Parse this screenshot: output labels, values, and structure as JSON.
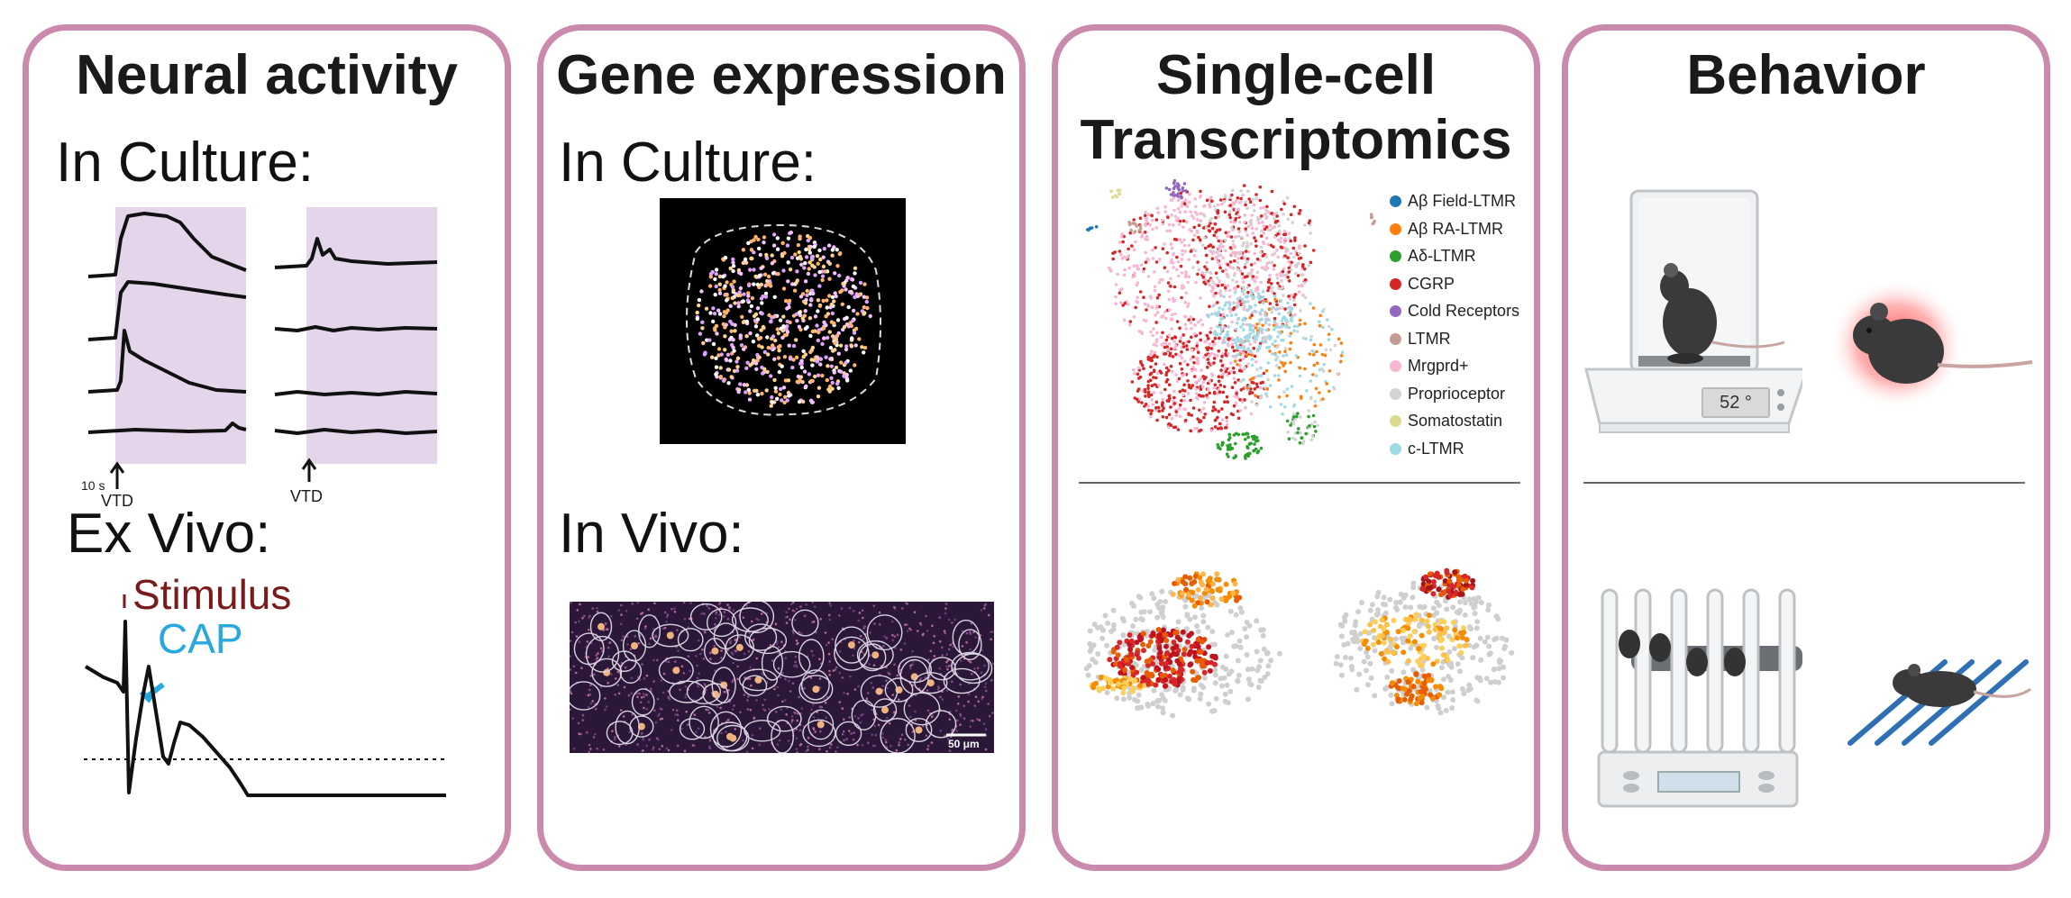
{
  "panels": [
    {
      "title_lines": [
        "Neural activity"
      ],
      "subtitles": [
        "In Culture:",
        "Ex Vivo:"
      ],
      "annotations": {
        "scale": "10 s",
        "vtd_1": "VTD",
        "vtd_2": "VTD",
        "stimulus": "Stimulus",
        "cap": "CAP"
      }
    },
    {
      "title_lines": [
        "Gene expression"
      ],
      "subtitles": [
        "In Culture:",
        "In Vivo:"
      ],
      "annotations": {
        "scale_bar": "50 μm"
      }
    },
    {
      "title_lines": [
        "Single-cell",
        "Transcriptomics"
      ],
      "legend": [
        {
          "label": "Aβ Field-LTMR",
          "color": "#1f77b4"
        },
        {
          "label": "Aβ RA-LTMR",
          "color": "#ff7f0e"
        },
        {
          "label": "Aδ-LTMR",
          "color": "#2ca02c"
        },
        {
          "label": "CGRP",
          "color": "#d62728"
        },
        {
          "label": "Cold Receptors",
          "color": "#9467bd"
        },
        {
          "label": "LTMR",
          "color": "#c49c94"
        },
        {
          "label": "Mrgprd+",
          "color": "#f7b6d2"
        },
        {
          "label": "Proprioceptor",
          "color": "#d3d3d3"
        },
        {
          "label": "Somatostatin",
          "color": "#dbdb8d"
        },
        {
          "label": "c-LTMR",
          "color": "#9edae5"
        }
      ]
    },
    {
      "title_lines": [
        "Behavior"
      ],
      "hotplate_display": "52 °"
    }
  ],
  "colors": {
    "border": "#c98aae",
    "stimulus": "#7a1a1a",
    "cap": "#29a8df",
    "shade": "#e4d5ea"
  }
}
